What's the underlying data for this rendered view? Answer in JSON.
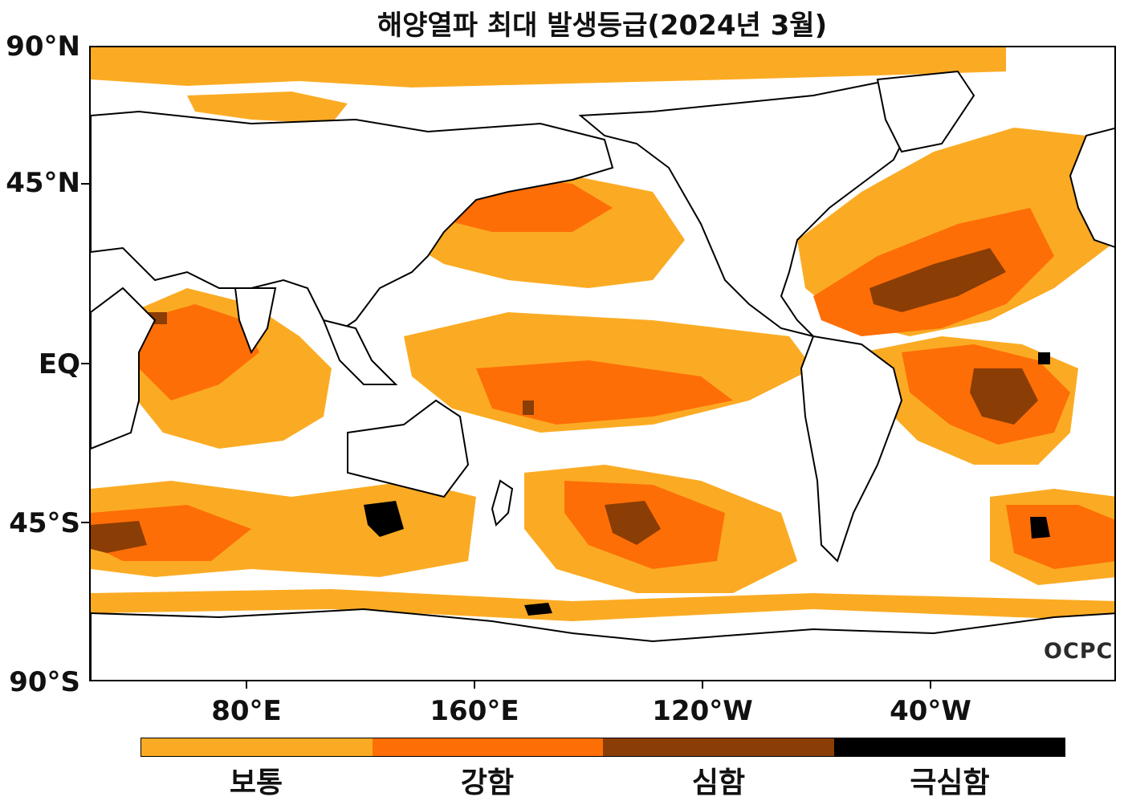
{
  "title": "해양열파 최대 발생등급(2024년 3월)",
  "y_axis_labels": [
    "90°N",
    "45°N",
    "EQ",
    "45°S",
    "90°S"
  ],
  "x_axis_labels": [
    "80°E",
    "160°E",
    "120°W",
    "40°W"
  ],
  "legend": {
    "levels": [
      {
        "label": "보통",
        "color": "#FBAB23"
      },
      {
        "label": "강함",
        "color": "#FE6E06"
      },
      {
        "label": "심함",
        "color": "#8A3D04"
      },
      {
        "label": "극심함",
        "color": "#000000"
      }
    ]
  },
  "logo_text": "OCPC",
  "colors": {
    "coastline": "#000000",
    "land": "#ffffff",
    "ocean_background": "#ffffff"
  }
}
